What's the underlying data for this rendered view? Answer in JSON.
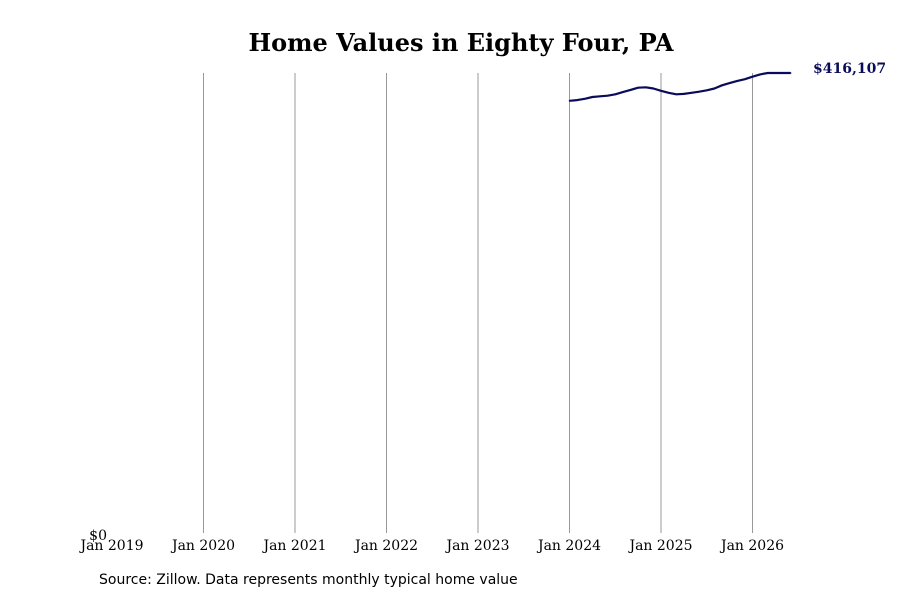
{
  "chart_data": {
    "type": "line",
    "title": "Home Values in Eighty Four, PA",
    "x_tick_labels": [
      "Jan 2019",
      "Jan 2020",
      "Jan 2021",
      "Jan 2022",
      "Jan 2023",
      "Jan 2024",
      "Jan 2025",
      "Jan 2026"
    ],
    "y_tick_labels": [
      "$0"
    ],
    "ylim": [
      0,
      416107
    ],
    "grid": "vertical",
    "end_label": "$416,107",
    "series": [
      {
        "color": "#0b0b5c",
        "points": [
          {
            "x": "2024-01",
            "y": 391000
          },
          {
            "x": "2024-02",
            "y": 391600
          },
          {
            "x": "2024-03",
            "y": 392800
          },
          {
            "x": "2024-04",
            "y": 394400
          },
          {
            "x": "2024-05",
            "y": 395000
          },
          {
            "x": "2024-06",
            "y": 395600
          },
          {
            "x": "2024-07",
            "y": 396800
          },
          {
            "x": "2024-08",
            "y": 398800
          },
          {
            "x": "2024-09",
            "y": 400800
          },
          {
            "x": "2024-10",
            "y": 402800
          },
          {
            "x": "2024-11",
            "y": 403200
          },
          {
            "x": "2024-12",
            "y": 402100
          },
          {
            "x": "2025-01",
            "y": 400000
          },
          {
            "x": "2025-02",
            "y": 398200
          },
          {
            "x": "2025-03",
            "y": 396800
          },
          {
            "x": "2025-04",
            "y": 397200
          },
          {
            "x": "2025-05",
            "y": 398200
          },
          {
            "x": "2025-06",
            "y": 399200
          },
          {
            "x": "2025-07",
            "y": 400500
          },
          {
            "x": "2025-08",
            "y": 402100
          },
          {
            "x": "2025-09",
            "y": 405000
          },
          {
            "x": "2025-10",
            "y": 407000
          },
          {
            "x": "2025-11",
            "y": 409000
          },
          {
            "x": "2025-12",
            "y": 410500
          },
          {
            "x": "2026-01",
            "y": 412800
          },
          {
            "x": "2026-02",
            "y": 414800
          },
          {
            "x": "2026-03",
            "y": 416107
          },
          {
            "x": "2026-04",
            "y": 416107
          },
          {
            "x": "2026-05",
            "y": 416107
          },
          {
            "x": "2026-06",
            "y": 416107
          }
        ]
      }
    ]
  },
  "footer": {
    "source": "Source: Zillow. Data represents monthly typical home value"
  }
}
